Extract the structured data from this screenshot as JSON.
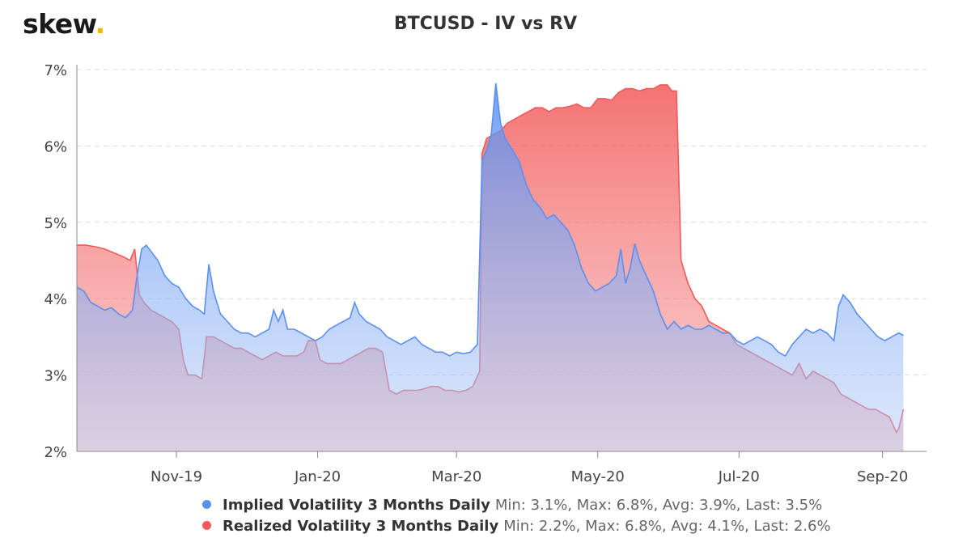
{
  "logo": {
    "text": "skew",
    "dot": "."
  },
  "chart_data": {
    "type": "area",
    "title": "BTCUSD - IV vs RV",
    "xlabel": "",
    "ylabel": "",
    "x_range": [
      "2019-09-19",
      "2020-09-20"
    ],
    "ylim": [
      2,
      7
    ],
    "y_ticks": [
      "2%",
      "3%",
      "4%",
      "5%",
      "6%",
      "7%"
    ],
    "x_ticks": [
      {
        "label": "Nov-19",
        "date": "2019-11-01"
      },
      {
        "label": "Jan-20",
        "date": "2020-01-01"
      },
      {
        "label": "Mar-20",
        "date": "2020-03-01"
      },
      {
        "label": "May-20",
        "date": "2020-05-01"
      },
      {
        "label": "Jul-20",
        "date": "2020-07-01"
      },
      {
        "label": "Sep-20",
        "date": "2020-09-01"
      }
    ],
    "grid": true,
    "legend_position": "bottom",
    "series": [
      {
        "name": "Implied Volatility 3 Months Daily",
        "stats": "Min: 3.1%, Max: 6.8%, Avg: 3.9%, Last: 3.5%",
        "color": "#5b8ff0",
        "fill": "#b3cdf8",
        "points": [
          [
            "2019-09-19",
            4.15
          ],
          [
            "2019-09-22",
            4.1
          ],
          [
            "2019-09-25",
            3.95
          ],
          [
            "2019-09-28",
            3.9
          ],
          [
            "2019-10-01",
            3.85
          ],
          [
            "2019-10-04",
            3.88
          ],
          [
            "2019-10-07",
            3.8
          ],
          [
            "2019-10-10",
            3.75
          ],
          [
            "2019-10-13",
            3.85
          ],
          [
            "2019-10-15",
            4.3
          ],
          [
            "2019-10-17",
            4.65
          ],
          [
            "2019-10-19",
            4.7
          ],
          [
            "2019-10-21",
            4.62
          ],
          [
            "2019-10-24",
            4.5
          ],
          [
            "2019-10-27",
            4.3
          ],
          [
            "2019-10-30",
            4.2
          ],
          [
            "2019-11-02",
            4.15
          ],
          [
            "2019-11-05",
            4.0
          ],
          [
            "2019-11-08",
            3.9
          ],
          [
            "2019-11-11",
            3.85
          ],
          [
            "2019-11-13",
            3.8
          ],
          [
            "2019-11-15",
            4.45
          ],
          [
            "2019-11-17",
            4.1
          ],
          [
            "2019-11-20",
            3.8
          ],
          [
            "2019-11-23",
            3.7
          ],
          [
            "2019-11-26",
            3.6
          ],
          [
            "2019-11-29",
            3.55
          ],
          [
            "2019-12-02",
            3.55
          ],
          [
            "2019-12-05",
            3.5
          ],
          [
            "2019-12-08",
            3.55
          ],
          [
            "2019-12-11",
            3.6
          ],
          [
            "2019-12-13",
            3.85
          ],
          [
            "2019-12-15",
            3.7
          ],
          [
            "2019-12-17",
            3.85
          ],
          [
            "2019-12-19",
            3.6
          ],
          [
            "2019-12-22",
            3.6
          ],
          [
            "2019-12-25",
            3.55
          ],
          [
            "2019-12-28",
            3.5
          ],
          [
            "2019-12-31",
            3.45
          ],
          [
            "2020-01-03",
            3.5
          ],
          [
            "2020-01-06",
            3.6
          ],
          [
            "2020-01-09",
            3.65
          ],
          [
            "2020-01-12",
            3.7
          ],
          [
            "2020-01-15",
            3.75
          ],
          [
            "2020-01-17",
            3.95
          ],
          [
            "2020-01-19",
            3.8
          ],
          [
            "2020-01-22",
            3.7
          ],
          [
            "2020-01-25",
            3.65
          ],
          [
            "2020-01-28",
            3.6
          ],
          [
            "2020-01-31",
            3.5
          ],
          [
            "2020-02-03",
            3.45
          ],
          [
            "2020-02-06",
            3.4
          ],
          [
            "2020-02-09",
            3.45
          ],
          [
            "2020-02-12",
            3.5
          ],
          [
            "2020-02-15",
            3.4
          ],
          [
            "2020-02-18",
            3.35
          ],
          [
            "2020-02-21",
            3.3
          ],
          [
            "2020-02-24",
            3.3
          ],
          [
            "2020-02-27",
            3.25
          ],
          [
            "2020-03-01",
            3.3
          ],
          [
            "2020-03-04",
            3.28
          ],
          [
            "2020-03-07",
            3.3
          ],
          [
            "2020-03-10",
            3.4
          ],
          [
            "2020-03-12",
            5.8
          ],
          [
            "2020-03-14",
            5.95
          ],
          [
            "2020-03-16",
            6.15
          ],
          [
            "2020-03-18",
            6.82
          ],
          [
            "2020-03-20",
            6.3
          ],
          [
            "2020-03-22",
            6.1
          ],
          [
            "2020-03-25",
            5.95
          ],
          [
            "2020-03-28",
            5.8
          ],
          [
            "2020-03-31",
            5.5
          ],
          [
            "2020-04-03",
            5.3
          ],
          [
            "2020-04-06",
            5.2
          ],
          [
            "2020-04-09",
            5.05
          ],
          [
            "2020-04-12",
            5.1
          ],
          [
            "2020-04-15",
            5.0
          ],
          [
            "2020-04-18",
            4.9
          ],
          [
            "2020-04-21",
            4.7
          ],
          [
            "2020-04-24",
            4.4
          ],
          [
            "2020-04-27",
            4.2
          ],
          [
            "2020-04-30",
            4.1
          ],
          [
            "2020-05-03",
            4.15
          ],
          [
            "2020-05-06",
            4.2
          ],
          [
            "2020-05-09",
            4.3
          ],
          [
            "2020-05-11",
            4.65
          ],
          [
            "2020-05-13",
            4.2
          ],
          [
            "2020-05-15",
            4.4
          ],
          [
            "2020-05-17",
            4.72
          ],
          [
            "2020-05-19",
            4.5
          ],
          [
            "2020-05-22",
            4.3
          ],
          [
            "2020-05-25",
            4.1
          ],
          [
            "2020-05-28",
            3.8
          ],
          [
            "2020-05-31",
            3.6
          ],
          [
            "2020-06-03",
            3.7
          ],
          [
            "2020-06-06",
            3.6
          ],
          [
            "2020-06-09",
            3.65
          ],
          [
            "2020-06-12",
            3.6
          ],
          [
            "2020-06-15",
            3.6
          ],
          [
            "2020-06-18",
            3.65
          ],
          [
            "2020-06-21",
            3.6
          ],
          [
            "2020-06-24",
            3.55
          ],
          [
            "2020-06-27",
            3.55
          ],
          [
            "2020-06-30",
            3.45
          ],
          [
            "2020-07-03",
            3.4
          ],
          [
            "2020-07-06",
            3.45
          ],
          [
            "2020-07-09",
            3.5
          ],
          [
            "2020-07-12",
            3.45
          ],
          [
            "2020-07-15",
            3.4
          ],
          [
            "2020-07-18",
            3.3
          ],
          [
            "2020-07-21",
            3.25
          ],
          [
            "2020-07-24",
            3.4
          ],
          [
            "2020-07-27",
            3.5
          ],
          [
            "2020-07-30",
            3.6
          ],
          [
            "2020-08-02",
            3.55
          ],
          [
            "2020-08-05",
            3.6
          ],
          [
            "2020-08-08",
            3.55
          ],
          [
            "2020-08-11",
            3.45
          ],
          [
            "2020-08-13",
            3.9
          ],
          [
            "2020-08-15",
            4.05
          ],
          [
            "2020-08-18",
            3.95
          ],
          [
            "2020-08-21",
            3.8
          ],
          [
            "2020-08-24",
            3.7
          ],
          [
            "2020-08-27",
            3.6
          ],
          [
            "2020-08-30",
            3.5
          ],
          [
            "2020-09-02",
            3.45
          ],
          [
            "2020-09-05",
            3.5
          ],
          [
            "2020-09-08",
            3.55
          ],
          [
            "2020-09-10",
            3.52
          ]
        ]
      },
      {
        "name": "Realized Volatility 3 Months Daily",
        "stats": "Min: 2.2%, Max: 6.8%, Avg: 4.1%, Last: 2.6%",
        "color": "#f25a5a",
        "fill": "#f79a9a",
        "points": [
          [
            "2019-09-19",
            4.7
          ],
          [
            "2019-09-23",
            4.7
          ],
          [
            "2019-09-27",
            4.68
          ],
          [
            "2019-10-01",
            4.65
          ],
          [
            "2019-10-05",
            4.6
          ],
          [
            "2019-10-09",
            4.55
          ],
          [
            "2019-10-12",
            4.5
          ],
          [
            "2019-10-14",
            4.65
          ],
          [
            "2019-10-16",
            4.05
          ],
          [
            "2019-10-18",
            3.95
          ],
          [
            "2019-10-21",
            3.85
          ],
          [
            "2019-10-24",
            3.8
          ],
          [
            "2019-10-27",
            3.75
          ],
          [
            "2019-10-30",
            3.7
          ],
          [
            "2019-11-02",
            3.6
          ],
          [
            "2019-11-04",
            3.2
          ],
          [
            "2019-11-06",
            3.0
          ],
          [
            "2019-11-09",
            3.0
          ],
          [
            "2019-11-12",
            2.95
          ],
          [
            "2019-11-14",
            3.5
          ],
          [
            "2019-11-17",
            3.5
          ],
          [
            "2019-11-20",
            3.45
          ],
          [
            "2019-11-23",
            3.4
          ],
          [
            "2019-11-26",
            3.35
          ],
          [
            "2019-11-29",
            3.35
          ],
          [
            "2019-12-02",
            3.3
          ],
          [
            "2019-12-05",
            3.25
          ],
          [
            "2019-12-08",
            3.2
          ],
          [
            "2019-12-11",
            3.25
          ],
          [
            "2019-12-14",
            3.3
          ],
          [
            "2019-12-17",
            3.25
          ],
          [
            "2019-12-20",
            3.25
          ],
          [
            "2019-12-23",
            3.25
          ],
          [
            "2019-12-26",
            3.3
          ],
          [
            "2019-12-28",
            3.45
          ],
          [
            "2019-12-31",
            3.45
          ],
          [
            "2020-01-02",
            3.2
          ],
          [
            "2020-01-05",
            3.15
          ],
          [
            "2020-01-08",
            3.15
          ],
          [
            "2020-01-11",
            3.15
          ],
          [
            "2020-01-14",
            3.2
          ],
          [
            "2020-01-17",
            3.25
          ],
          [
            "2020-01-20",
            3.3
          ],
          [
            "2020-01-23",
            3.35
          ],
          [
            "2020-01-26",
            3.35
          ],
          [
            "2020-01-29",
            3.3
          ],
          [
            "2020-02-01",
            2.8
          ],
          [
            "2020-02-04",
            2.75
          ],
          [
            "2020-02-07",
            2.8
          ],
          [
            "2020-02-10",
            2.8
          ],
          [
            "2020-02-13",
            2.8
          ],
          [
            "2020-02-16",
            2.82
          ],
          [
            "2020-02-19",
            2.85
          ],
          [
            "2020-02-22",
            2.85
          ],
          [
            "2020-02-25",
            2.8
          ],
          [
            "2020-02-28",
            2.8
          ],
          [
            "2020-03-02",
            2.78
          ],
          [
            "2020-03-05",
            2.8
          ],
          [
            "2020-03-08",
            2.85
          ],
          [
            "2020-03-11",
            3.05
          ],
          [
            "2020-03-12",
            5.9
          ],
          [
            "2020-03-14",
            6.1
          ],
          [
            "2020-03-17",
            6.15
          ],
          [
            "2020-03-20",
            6.2
          ],
          [
            "2020-03-23",
            6.3
          ],
          [
            "2020-03-26",
            6.35
          ],
          [
            "2020-03-29",
            6.4
          ],
          [
            "2020-04-01",
            6.45
          ],
          [
            "2020-04-04",
            6.5
          ],
          [
            "2020-04-07",
            6.5
          ],
          [
            "2020-04-10",
            6.45
          ],
          [
            "2020-04-13",
            6.5
          ],
          [
            "2020-04-16",
            6.5
          ],
          [
            "2020-04-19",
            6.52
          ],
          [
            "2020-04-22",
            6.55
          ],
          [
            "2020-04-25",
            6.5
          ],
          [
            "2020-04-28",
            6.5
          ],
          [
            "2020-05-01",
            6.62
          ],
          [
            "2020-05-04",
            6.62
          ],
          [
            "2020-05-07",
            6.6
          ],
          [
            "2020-05-10",
            6.7
          ],
          [
            "2020-05-13",
            6.75
          ],
          [
            "2020-05-16",
            6.75
          ],
          [
            "2020-05-19",
            6.72
          ],
          [
            "2020-05-22",
            6.75
          ],
          [
            "2020-05-25",
            6.75
          ],
          [
            "2020-05-28",
            6.8
          ],
          [
            "2020-05-31",
            6.8
          ],
          [
            "2020-06-02",
            6.72
          ],
          [
            "2020-06-04",
            6.72
          ],
          [
            "2020-06-06",
            4.5
          ],
          [
            "2020-06-09",
            4.2
          ],
          [
            "2020-06-12",
            4.0
          ],
          [
            "2020-06-15",
            3.9
          ],
          [
            "2020-06-18",
            3.7
          ],
          [
            "2020-06-21",
            3.65
          ],
          [
            "2020-06-24",
            3.6
          ],
          [
            "2020-06-27",
            3.55
          ],
          [
            "2020-06-30",
            3.4
          ],
          [
            "2020-07-03",
            3.35
          ],
          [
            "2020-07-06",
            3.3
          ],
          [
            "2020-07-09",
            3.25
          ],
          [
            "2020-07-12",
            3.2
          ],
          [
            "2020-07-15",
            3.15
          ],
          [
            "2020-07-18",
            3.1
          ],
          [
            "2020-07-21",
            3.05
          ],
          [
            "2020-07-24",
            3.0
          ],
          [
            "2020-07-27",
            3.15
          ],
          [
            "2020-07-30",
            2.95
          ],
          [
            "2020-08-02",
            3.05
          ],
          [
            "2020-08-05",
            3.0
          ],
          [
            "2020-08-08",
            2.95
          ],
          [
            "2020-08-11",
            2.9
          ],
          [
            "2020-08-14",
            2.75
          ],
          [
            "2020-08-17",
            2.7
          ],
          [
            "2020-08-20",
            2.65
          ],
          [
            "2020-08-23",
            2.6
          ],
          [
            "2020-08-26",
            2.55
          ],
          [
            "2020-08-29",
            2.55
          ],
          [
            "2020-09-01",
            2.5
          ],
          [
            "2020-09-04",
            2.45
          ],
          [
            "2020-09-07",
            2.25
          ],
          [
            "2020-09-08",
            2.3
          ],
          [
            "2020-09-10",
            2.55
          ]
        ]
      }
    ]
  }
}
